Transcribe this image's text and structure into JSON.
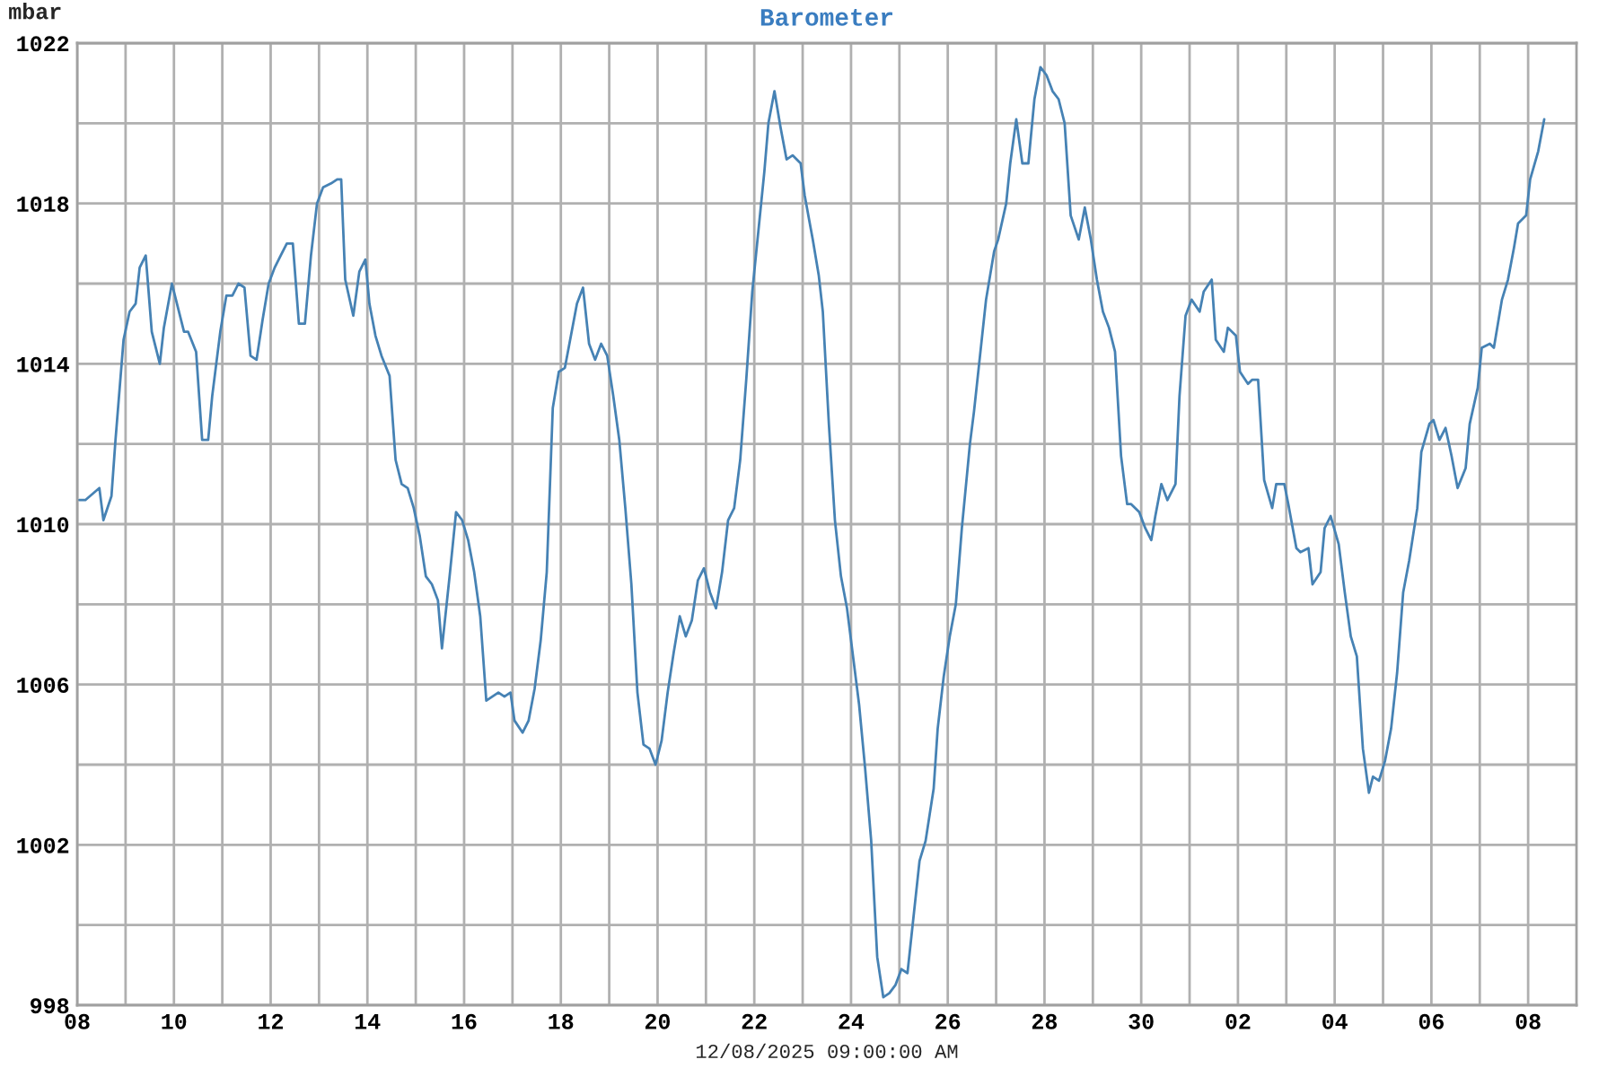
{
  "chart_data": {
    "type": "line",
    "title": "Barometer",
    "xlabel": "12/08/2025 09:00:00 AM",
    "ylabel": "mbar",
    "x": [
      "2025-11-08T01:00",
      "2025-11-08T04:00",
      "2025-11-08T11:00",
      "2025-11-08T13:00",
      "2025-11-08T17:00",
      "2025-11-08T19:00",
      "2025-11-08T23:00",
      "2025-11-09T02:00",
      "2025-11-09T05:00",
      "2025-11-09T07:00",
      "2025-11-09T10:00",
      "2025-11-09T13:00",
      "2025-11-09T17:00",
      "2025-11-09T19:00",
      "2025-11-09T23:00",
      "2025-11-10T02:00",
      "2025-11-10T05:00",
      "2025-11-10T07:00",
      "2025-11-10T11:00",
      "2025-11-10T14:00",
      "2025-11-10T17:00",
      "2025-11-10T19:00",
      "2025-11-10T23:00",
      "2025-11-11T02:00",
      "2025-11-11T05:00",
      "2025-11-11T08:00",
      "2025-11-11T11:00",
      "2025-11-11T14:00",
      "2025-11-11T17:00",
      "2025-11-11T20:00",
      "2025-11-11T23:00",
      "2025-11-12T02:00",
      "2025-11-12T05:00",
      "2025-11-12T08:00",
      "2025-11-12T11:00",
      "2025-11-12T14:00",
      "2025-11-12T17:00",
      "2025-11-12T20:00",
      "2025-11-12T23:00",
      "2025-11-13T02:00",
      "2025-11-13T06:00",
      "2025-11-13T09:00",
      "2025-11-13T11:00",
      "2025-11-13T13:00",
      "2025-11-13T17:00",
      "2025-11-13T20:00",
      "2025-11-13T23:00",
      "2025-11-14T01:00",
      "2025-11-14T04:00",
      "2025-11-14T07:00",
      "2025-11-14T11:00",
      "2025-11-14T14:00",
      "2025-11-14T17:00",
      "2025-11-14T20:00",
      "2025-11-14T23:00",
      "2025-11-15T02:00",
      "2025-11-15T05:00",
      "2025-11-15T08:00",
      "2025-11-15T11:00",
      "2025-11-15T13:00",
      "2025-11-15T17:00",
      "2025-11-15T20:00",
      "2025-11-15T23:00",
      "2025-11-16T02:00",
      "2025-11-16T05:00",
      "2025-11-16T08:00",
      "2025-11-16T11:00",
      "2025-11-16T14:00",
      "2025-11-16T17:00",
      "2025-11-16T20:00",
      "2025-11-16T23:00",
      "2025-11-17T01:00",
      "2025-11-17T05:00",
      "2025-11-17T08:00",
      "2025-11-17T11:00",
      "2025-11-17T14:00",
      "2025-11-17T17:00",
      "2025-11-17T20:00",
      "2025-11-17T23:00",
      "2025-11-18T02:00",
      "2025-11-18T05:00",
      "2025-11-18T08:00",
      "2025-11-18T11:00",
      "2025-11-18T14:00",
      "2025-11-18T17:00",
      "2025-11-18T20:00",
      "2025-11-18T23:00",
      "2025-11-19T02:00",
      "2025-11-19T05:00",
      "2025-11-19T08:00",
      "2025-11-19T11:00",
      "2025-11-19T14:00",
      "2025-11-19T17:00",
      "2025-11-19T20:00",
      "2025-11-19T23:00",
      "2025-11-20T02:00",
      "2025-11-20T05:00",
      "2025-11-20T08:00",
      "2025-11-20T11:00",
      "2025-11-20T14:00",
      "2025-11-20T17:00",
      "2025-11-20T20:00",
      "2025-11-20T23:00",
      "2025-11-21T02:00",
      "2025-11-21T05:00",
      "2025-11-21T08:00",
      "2025-11-21T11:00",
      "2025-11-21T14:00",
      "2025-11-21T17:00",
      "2025-11-21T20:00",
      "2025-11-21T23:00",
      "2025-11-22T02:00",
      "2025-11-22T05:00",
      "2025-11-22T07:00",
      "2025-11-22T10:00",
      "2025-11-22T13:00",
      "2025-11-22T16:00",
      "2025-11-22T19:00",
      "2025-11-22T23:00",
      "2025-11-23T01:00",
      "2025-11-23T05:00",
      "2025-11-23T08:00",
      "2025-11-23T10:00",
      "2025-11-23T13:00",
      "2025-11-23T16:00",
      "2025-11-23T19:00",
      "2025-11-23T22:00",
      "2025-11-24T01:00",
      "2025-11-24T04:00",
      "2025-11-24T07:00",
      "2025-11-24T10:00",
      "2025-11-24T13:00",
      "2025-11-24T16:00",
      "2025-11-24T19:00",
      "2025-11-24T22:00",
      "2025-11-25T01:00",
      "2025-11-25T04:00",
      "2025-11-25T07:00",
      "2025-11-25T10:00",
      "2025-11-25T13:00",
      "2025-11-25T17:00",
      "2025-11-25T19:00",
      "2025-11-25T22:00",
      "2025-11-26T01:00",
      "2025-11-26T04:00",
      "2025-11-26T07:00",
      "2025-11-26T11:00",
      "2025-11-26T13:00",
      "2025-11-26T16:00",
      "2025-11-26T19:00",
      "2025-11-26T23:00",
      "2025-11-27T01:00",
      "2025-11-27T05:00",
      "2025-11-27T07:00",
      "2025-11-27T10:00",
      "2025-11-27T13:00",
      "2025-11-27T16:00",
      "2025-11-27T19:00",
      "2025-11-27T22:00",
      "2025-11-28T01:00",
      "2025-11-28T04:00",
      "2025-11-28T07:00",
      "2025-11-28T10:00",
      "2025-11-28T13:00",
      "2025-11-28T17:00",
      "2025-11-28T20:00",
      "2025-11-28T23:00",
      "2025-11-29T02:00",
      "2025-11-29T05:00",
      "2025-11-29T08:00",
      "2025-11-29T11:00",
      "2025-11-29T14:00",
      "2025-11-29T17:00",
      "2025-11-29T19:00",
      "2025-11-29T23:00",
      "2025-11-30T02:00",
      "2025-11-30T05:00",
      "2025-11-30T07:00",
      "2025-11-30T10:00",
      "2025-11-30T13:00",
      "2025-11-30T17:00",
      "2025-11-30T19:00",
      "2025-11-30T22:00",
      "2025-12-01T01:00",
      "2025-12-01T05:00",
      "2025-12-01T07:00",
      "2025-12-01T11:00",
      "2025-12-01T13:00",
      "2025-12-01T17:00",
      "2025-12-01T19:00",
      "2025-12-01T23:00",
      "2025-12-02T01:00",
      "2025-12-02T05:00",
      "2025-12-02T07:00",
      "2025-12-02T10:00",
      "2025-12-02T13:00",
      "2025-12-02T17:00",
      "2025-12-02T19:00",
      "2025-12-02T23:00",
      "2025-12-03T01:00",
      "2025-12-03T05:00",
      "2025-12-03T07:00",
      "2025-12-03T11:00",
      "2025-12-03T13:00",
      "2025-12-03T17:00",
      "2025-12-03T19:00",
      "2025-12-03T22:00",
      "2025-12-04T02:00",
      "2025-12-04T05:00",
      "2025-12-04T08:00",
      "2025-12-04T11:00",
      "2025-12-04T14:00",
      "2025-12-04T17:00",
      "2025-12-04T19:00",
      "2025-12-04T22:00",
      "2025-12-05T01:00",
      "2025-12-05T04:00",
      "2025-12-05T07:00",
      "2025-12-05T10:00",
      "2025-12-05T13:00",
      "2025-12-05T17:00",
      "2025-12-05T19:00",
      "2025-12-05T23:00",
      "2025-12-06T01:00",
      "2025-12-06T04:00",
      "2025-12-06T07:00",
      "2025-12-06T10:00",
      "2025-12-06T13:00",
      "2025-12-06T17:00",
      "2025-12-06T19:00",
      "2025-12-06T23:00",
      "2025-12-07T01:00",
      "2025-12-07T05:00",
      "2025-12-07T07:00",
      "2025-12-07T11:00",
      "2025-12-07T14:00",
      "2025-12-07T17:00",
      "2025-12-07T19:00",
      "2025-12-07T23:00",
      "2025-12-08T01:00",
      "2025-12-08T05:00",
      "2025-12-08T08:00"
    ],
    "series": [
      {
        "color": "#4682b4",
        "values": [
          1010.6,
          1010.6,
          1010.9,
          1010.1,
          1010.7,
          1012.1,
          1014.6,
          1015.3,
          1015.5,
          1016.4,
          1016.7,
          1014.8,
          1014.0,
          1014.9,
          1016.0,
          1015.4,
          1014.8,
          1014.8,
          1014.3,
          1012.1,
          1012.1,
          1013.2,
          1014.8,
          1015.7,
          1015.7,
          1016.0,
          1015.9,
          1014.2,
          1014.1,
          1015.1,
          1016.0,
          1016.4,
          1016.7,
          1017.0,
          1017.0,
          1015.0,
          1015.0,
          1016.7,
          1018.0,
          1018.4,
          1018.5,
          1018.6,
          1018.6,
          1016.1,
          1015.2,
          1016.3,
          1016.6,
          1015.5,
          1014.7,
          1014.2,
          1013.7,
          1011.6,
          1011.0,
          1010.9,
          1010.4,
          1009.7,
          1008.7,
          1008.5,
          1008.1,
          1006.9,
          1008.8,
          1010.3,
          1010.1,
          1009.6,
          1008.8,
          1007.7,
          1005.6,
          1005.7,
          1005.8,
          1005.7,
          1005.8,
          1005.1,
          1004.8,
          1005.1,
          1005.9,
          1007.1,
          1008.8,
          1012.9,
          1013.8,
          1013.9,
          1014.7,
          1015.5,
          1015.9,
          1014.5,
          1014.1,
          1014.5,
          1014.2,
          1013.2,
          1012.1,
          1010.4,
          1008.5,
          1005.8,
          1004.5,
          1004.4,
          1004.0,
          1004.6,
          1005.8,
          1006.8,
          1007.7,
          1007.2,
          1007.6,
          1008.6,
          1008.9,
          1008.3,
          1007.9,
          1008.8,
          1010.1,
          1010.4,
          1011.6,
          1013.6,
          1015.8,
          1017.3,
          1018.8,
          1020.0,
          1020.8,
          1019.9,
          1019.1,
          1019.2,
          1019.0,
          1018.2,
          1017.1,
          1016.2,
          1015.3,
          1012.5,
          1010.1,
          1008.7,
          1007.9,
          1006.7,
          1005.5,
          1003.9,
          1002.1,
          999.2,
          998.2,
          998.3,
          998.5,
          998.9,
          998.8,
          1000.2,
          1001.6,
          1002.1,
          1003.4,
          1004.9,
          1006.2,
          1007.2,
          1008.0,
          1009.9,
          1012.0,
          1012.8,
          1014.2,
          1015.6,
          1016.8,
          1017.1,
          1018.0,
          1019.0,
          1020.1,
          1019.0,
          1019.0,
          1020.6,
          1021.4,
          1021.2,
          1020.8,
          1020.6,
          1020.0,
          1017.7,
          1017.1,
          1017.9,
          1017.1,
          1016.1,
          1015.3,
          1014.9,
          1014.3,
          1011.7,
          1010.5,
          1010.5,
          1010.3,
          1009.9,
          1009.6,
          1010.2,
          1011.0,
          1010.6,
          1011.0,
          1013.2,
          1015.2,
          1015.6,
          1015.3,
          1015.8,
          1016.1,
          1014.6,
          1014.3,
          1014.9,
          1014.7,
          1013.8,
          1013.5,
          1013.6,
          1013.6,
          1011.1,
          1010.4,
          1011.0,
          1011.0,
          1010.5,
          1009.4,
          1009.3,
          1009.4,
          1008.5,
          1008.8,
          1009.9,
          1010.2,
          1009.5,
          1008.3,
          1007.2,
          1006.7,
          1004.4,
          1003.3,
          1003.7,
          1003.6,
          1004.1,
          1004.9,
          1006.3,
          1008.3,
          1009.1,
          1010.4,
          1011.8,
          1012.5,
          1012.6,
          1012.1,
          1012.4,
          1011.7,
          1010.9,
          1011.4,
          1012.5,
          1013.4,
          1014.4,
          1014.5,
          1014.4,
          1015.6,
          1016.1,
          1016.9,
          1017.5,
          1017.7,
          1018.6,
          1019.3,
          1020.1
        ]
      }
    ],
    "xlim": [
      "2025-11-08",
      "2025-12-09"
    ],
    "xticks": [
      {
        "value": "2025-11-08",
        "label": "08"
      },
      {
        "value": "2025-11-09",
        "label": null
      },
      {
        "value": "2025-11-10",
        "label": "10"
      },
      {
        "value": "2025-11-11",
        "label": null
      },
      {
        "value": "2025-11-12",
        "label": "12"
      },
      {
        "value": "2025-11-13",
        "label": null
      },
      {
        "value": "2025-11-14",
        "label": "14"
      },
      {
        "value": "2025-11-15",
        "label": null
      },
      {
        "value": "2025-11-16",
        "label": "16"
      },
      {
        "value": "2025-11-17",
        "label": null
      },
      {
        "value": "2025-11-18",
        "label": "18"
      },
      {
        "value": "2025-11-19",
        "label": null
      },
      {
        "value": "2025-11-20",
        "label": "20"
      },
      {
        "value": "2025-11-21",
        "label": null
      },
      {
        "value": "2025-11-22",
        "label": "22"
      },
      {
        "value": "2025-11-23",
        "label": null
      },
      {
        "value": "2025-11-24",
        "label": "24"
      },
      {
        "value": "2025-11-25",
        "label": null
      },
      {
        "value": "2025-11-26",
        "label": "26"
      },
      {
        "value": "2025-11-27",
        "label": null
      },
      {
        "value": "2025-11-28",
        "label": "28"
      },
      {
        "value": "2025-11-29",
        "label": null
      },
      {
        "value": "2025-11-30",
        "label": "30"
      },
      {
        "value": "2025-12-01",
        "label": null
      },
      {
        "value": "2025-12-02",
        "label": "02"
      },
      {
        "value": "2025-12-03",
        "label": null
      },
      {
        "value": "2025-12-04",
        "label": "04"
      },
      {
        "value": "2025-12-05",
        "label": null
      },
      {
        "value": "2025-12-06",
        "label": "06"
      },
      {
        "value": "2025-12-07",
        "label": null
      },
      {
        "value": "2025-12-08",
        "label": "08"
      }
    ],
    "ylim": [
      998,
      1022
    ],
    "yticks": [
      998,
      {
        "value": 1000,
        "label": null
      },
      1002,
      {
        "value": 1004,
        "label": null
      },
      1006,
      {
        "value": 1008,
        "label": null
      },
      1010,
      {
        "value": 1012,
        "label": null
      },
      1014,
      {
        "value": 1016,
        "label": null
      },
      1018,
      {
        "value": 1020,
        "label": null
      },
      1022
    ],
    "grid": true
  }
}
